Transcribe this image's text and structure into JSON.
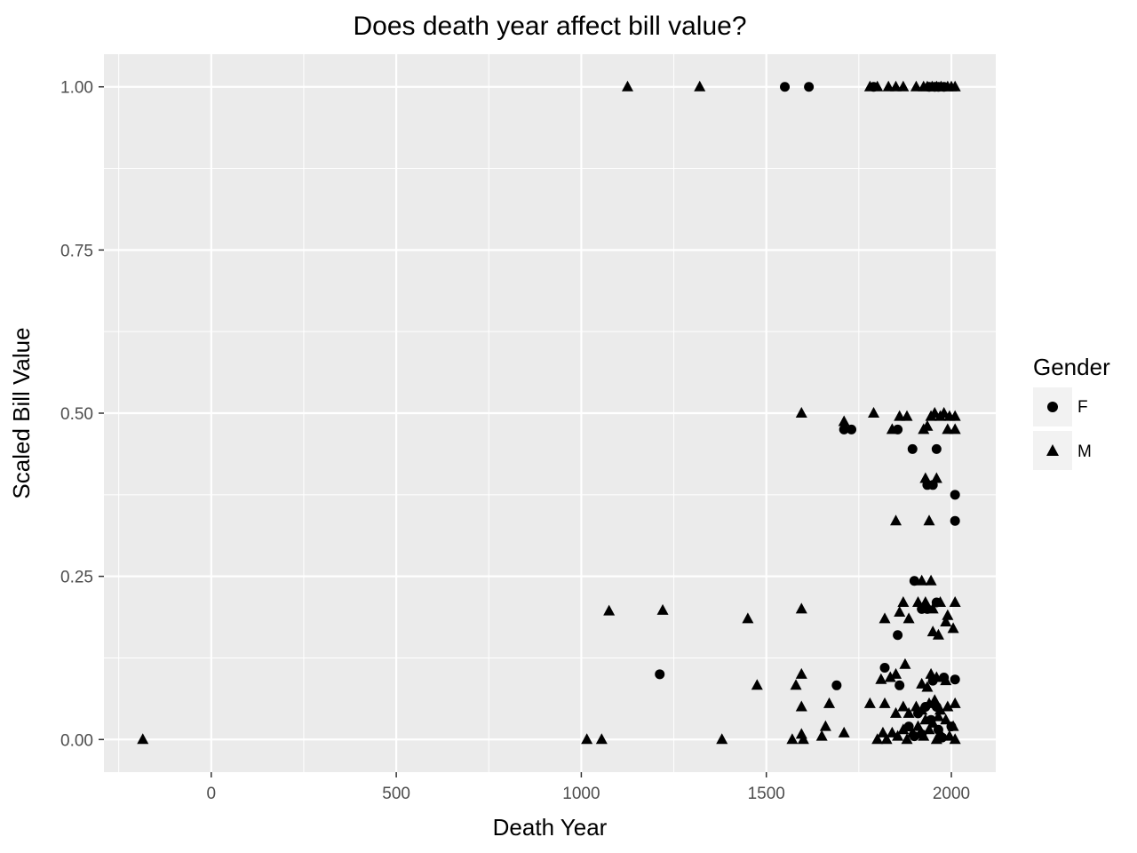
{
  "chart_data": {
    "type": "scatter",
    "title": "Does death year affect bill value?",
    "xlabel": "Death Year",
    "ylabel": "Scaled Bill Value",
    "xlim": [
      -290,
      2120
    ],
    "ylim": [
      -0.05,
      1.05
    ],
    "x_ticks": [
      0,
      500,
      1000,
      1500,
      2000
    ],
    "y_ticks": [
      0.0,
      0.25,
      0.5,
      0.75,
      1.0
    ],
    "x_tick_labels": [
      "0",
      "500",
      "1000",
      "1500",
      "2000"
    ],
    "y_tick_labels": [
      "0.00",
      "0.25",
      "0.50",
      "0.75",
      "1.00"
    ],
    "grid": true,
    "panel_background": "#ebebeb",
    "grid_color": "#ffffff",
    "legend": {
      "title": "Gender",
      "position": "right",
      "entries": [
        {
          "label": "F",
          "shape": "circle"
        },
        {
          "label": "M",
          "shape": "triangle"
        }
      ]
    },
    "series": [
      {
        "name": "F",
        "shape": "circle",
        "points": [
          [
            1550,
            1.0
          ],
          [
            1615,
            1.0
          ],
          [
            1790,
            1.0
          ],
          [
            1940,
            1.0
          ],
          [
            1955,
            1.0
          ],
          [
            1965,
            1.0
          ],
          [
            1980,
            1.0
          ],
          [
            1710,
            0.475
          ],
          [
            1730,
            0.475
          ],
          [
            1855,
            0.475
          ],
          [
            1895,
            0.445
          ],
          [
            1960,
            0.445
          ],
          [
            1935,
            0.39
          ],
          [
            1950,
            0.39
          ],
          [
            2010,
            0.375
          ],
          [
            2010,
            0.335
          ],
          [
            1900,
            0.243
          ],
          [
            1920,
            0.2
          ],
          [
            1960,
            0.21
          ],
          [
            1855,
            0.16
          ],
          [
            1935,
            0.2
          ],
          [
            1212,
            0.1
          ],
          [
            1820,
            0.11
          ],
          [
            1690,
            0.083
          ],
          [
            1860,
            0.083
          ],
          [
            1980,
            0.095
          ],
          [
            2010,
            0.092
          ],
          [
            1950,
            0.09
          ],
          [
            1930,
            0.05
          ],
          [
            1960,
            0.05
          ],
          [
            1910,
            0.04
          ],
          [
            1945,
            0.03
          ],
          [
            1885,
            0.02
          ],
          [
            1965,
            0.015
          ],
          [
            2000,
            0.02
          ],
          [
            1900,
            0.005
          ],
          [
            1920,
            0.008
          ],
          [
            1975,
            0.003
          ]
        ]
      },
      {
        "name": "M",
        "shape": "triangle",
        "points": [
          [
            1125,
            1.0
          ],
          [
            1320,
            1.0
          ],
          [
            1780,
            1.0
          ],
          [
            1800,
            1.0
          ],
          [
            1830,
            1.0
          ],
          [
            1850,
            1.0
          ],
          [
            1870,
            1.0
          ],
          [
            1905,
            1.0
          ],
          [
            1925,
            1.0
          ],
          [
            1935,
            1.0
          ],
          [
            1948,
            1.0
          ],
          [
            1960,
            1.0
          ],
          [
            1972,
            1.0
          ],
          [
            1990,
            1.0
          ],
          [
            2000,
            1.0
          ],
          [
            2010,
            1.0
          ],
          [
            1595,
            0.5
          ],
          [
            1790,
            0.5
          ],
          [
            1710,
            0.487
          ],
          [
            1840,
            0.475
          ],
          [
            1860,
            0.495
          ],
          [
            1880,
            0.495
          ],
          [
            1925,
            0.475
          ],
          [
            1935,
            0.48
          ],
          [
            1945,
            0.495
          ],
          [
            1955,
            0.5
          ],
          [
            1970,
            0.495
          ],
          [
            1980,
            0.5
          ],
          [
            1995,
            0.495
          ],
          [
            2010,
            0.495
          ],
          [
            1990,
            0.475
          ],
          [
            2010,
            0.475
          ],
          [
            1930,
            0.4
          ],
          [
            1960,
            0.4
          ],
          [
            1850,
            0.335
          ],
          [
            1940,
            0.335
          ],
          [
            1920,
            0.243
          ],
          [
            1945,
            0.243
          ],
          [
            1075,
            0.197
          ],
          [
            1220,
            0.198
          ],
          [
            1450,
            0.185
          ],
          [
            1595,
            0.2
          ],
          [
            1820,
            0.185
          ],
          [
            1860,
            0.195
          ],
          [
            1870,
            0.21
          ],
          [
            1885,
            0.185
          ],
          [
            1910,
            0.21
          ],
          [
            1930,
            0.21
          ],
          [
            1950,
            0.2
          ],
          [
            1970,
            0.21
          ],
          [
            1990,
            0.19
          ],
          [
            2010,
            0.21
          ],
          [
            2005,
            0.17
          ],
          [
            1950,
            0.165
          ],
          [
            1965,
            0.16
          ],
          [
            1985,
            0.18
          ],
          [
            1015,
            0.0
          ],
          [
            1055,
            0.0
          ],
          [
            1380,
            0.0
          ],
          [
            1475,
            0.083
          ],
          [
            1580,
            0.083
          ],
          [
            1595,
            0.1
          ],
          [
            1595,
            0.05
          ],
          [
            1670,
            0.055
          ],
          [
            1660,
            0.02
          ],
          [
            1710,
            0.01
          ],
          [
            1650,
            0.005
          ],
          [
            1570,
            0.0
          ],
          [
            1600,
            0.0
          ],
          [
            1595,
            0.008
          ],
          [
            1780,
            0.055
          ],
          [
            1810,
            0.092
          ],
          [
            1835,
            0.095
          ],
          [
            1850,
            0.1
          ],
          [
            1875,
            0.115
          ],
          [
            1920,
            0.085
          ],
          [
            1935,
            0.08
          ],
          [
            1945,
            0.1
          ],
          [
            1960,
            0.095
          ],
          [
            1985,
            0.09
          ],
          [
            1820,
            0.055
          ],
          [
            1850,
            0.04
          ],
          [
            1870,
            0.05
          ],
          [
            1885,
            0.04
          ],
          [
            1905,
            0.05
          ],
          [
            1920,
            0.045
          ],
          [
            1940,
            0.055
          ],
          [
            1955,
            0.06
          ],
          [
            1970,
            0.045
          ],
          [
            1990,
            0.05
          ],
          [
            2010,
            0.055
          ],
          [
            1800,
            0.0
          ],
          [
            1815,
            0.01
          ],
          [
            1825,
            0.0
          ],
          [
            1840,
            0.01
          ],
          [
            1855,
            0.005
          ],
          [
            1870,
            0.015
          ],
          [
            1880,
            0.0
          ],
          [
            1895,
            0.01
          ],
          [
            1910,
            0.02
          ],
          [
            1925,
            0.005
          ],
          [
            1940,
            0.015
          ],
          [
            1950,
            0.025
          ],
          [
            1960,
            0.0
          ],
          [
            1970,
            0.01
          ],
          [
            1985,
            0.03
          ],
          [
            1995,
            0.005
          ],
          [
            2005,
            0.02
          ],
          [
            2010,
            0.0
          ],
          [
            1930,
            0.03
          ],
          [
            1965,
            0.035
          ],
          [
            -185,
            0.0
          ]
        ]
      }
    ]
  }
}
